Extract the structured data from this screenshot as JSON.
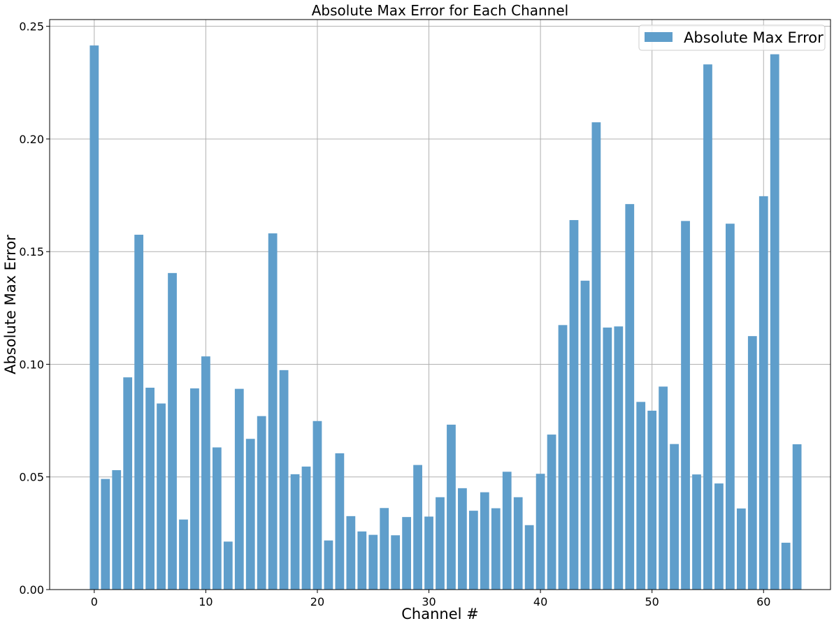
{
  "chart_data": {
    "type": "bar",
    "title": "Absolute Max Error for Each Channel",
    "xlabel": "Channel #",
    "ylabel": "Absolute Max Error",
    "xlim": [
      -4,
      66
    ],
    "ylim": [
      0,
      0.253
    ],
    "xticks": [
      0,
      10,
      20,
      30,
      40,
      50,
      60
    ],
    "xtick_labels": [
      "0",
      "10",
      "20",
      "30",
      "40",
      "50",
      "60"
    ],
    "yticks": [
      0,
      0.05,
      0.1,
      0.15,
      0.2,
      0.25
    ],
    "ytick_labels": [
      "0.00",
      "0.05",
      "0.10",
      "0.15",
      "0.20",
      "0.25"
    ],
    "grid": true,
    "legend_position": "top-right",
    "series": [
      {
        "name": "Absolute Max Error",
        "color": "#5f9ecb",
        "x": [
          0,
          1,
          2,
          3,
          4,
          5,
          6,
          7,
          8,
          9,
          10,
          11,
          12,
          13,
          14,
          15,
          16,
          17,
          18,
          19,
          20,
          21,
          22,
          23,
          24,
          25,
          26,
          27,
          28,
          29,
          30,
          31,
          32,
          33,
          34,
          35,
          36,
          37,
          38,
          39,
          40,
          41,
          42,
          43,
          44,
          45,
          46,
          47,
          48,
          49,
          50,
          51,
          52,
          53,
          54,
          55,
          56,
          57,
          58,
          59,
          60,
          61,
          62,
          63
        ],
        "values": [
          0.2415,
          0.0491,
          0.053,
          0.0942,
          0.1575,
          0.0896,
          0.0826,
          0.1405,
          0.0311,
          0.0893,
          0.1035,
          0.0631,
          0.0213,
          0.0891,
          0.0669,
          0.077,
          0.1581,
          0.0974,
          0.0512,
          0.0546,
          0.0748,
          0.0218,
          0.0605,
          0.0326,
          0.0258,
          0.0243,
          0.0362,
          0.0241,
          0.0322,
          0.0553,
          0.0324,
          0.041,
          0.0732,
          0.045,
          0.035,
          0.0432,
          0.0361,
          0.0523,
          0.041,
          0.0286,
          0.0514,
          0.0688,
          0.1174,
          0.164,
          0.1371,
          0.2074,
          0.1163,
          0.1168,
          0.1711,
          0.0833,
          0.0794,
          0.0901,
          0.0646,
          0.1636,
          0.0511,
          0.2331,
          0.0471,
          0.1624,
          0.036,
          0.1125,
          0.1746,
          0.2376,
          0.0208,
          0.0645
        ]
      }
    ]
  }
}
